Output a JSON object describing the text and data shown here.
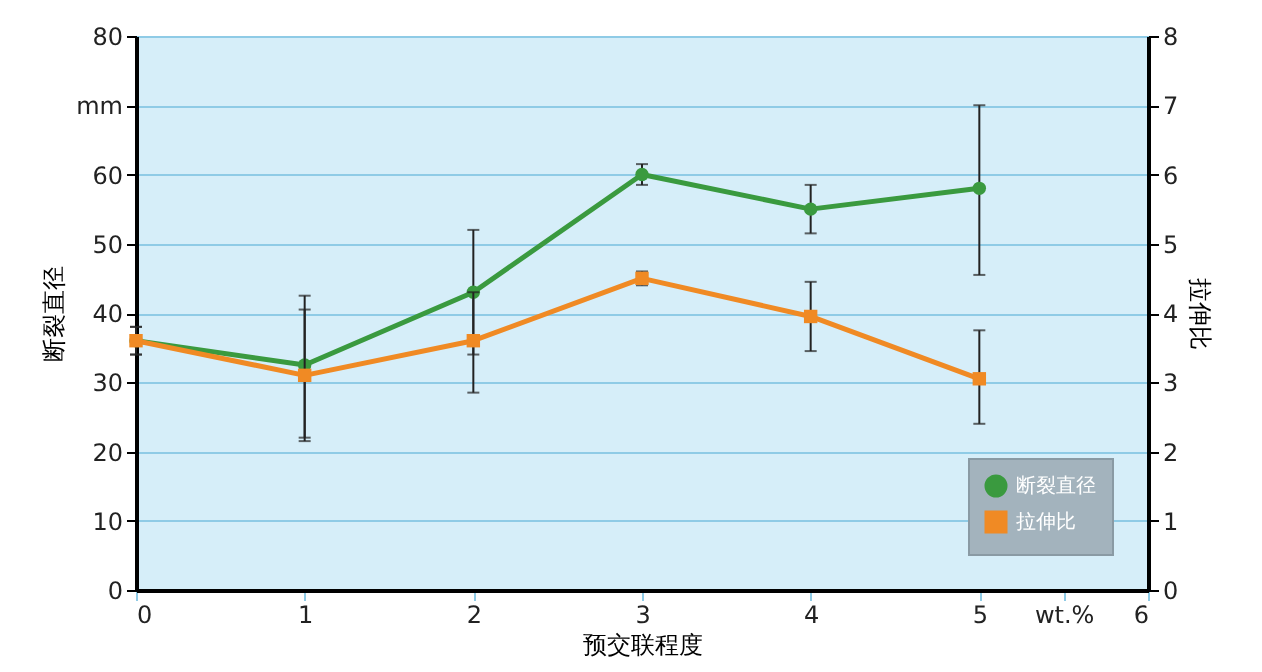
{
  "chart_data": {
    "type": "line",
    "xlabel": "预交联程度",
    "ylabel": "断裂直径",
    "y2label": "拉伸比",
    "x": [
      0,
      1,
      2,
      3,
      4,
      5
    ],
    "series": [
      {
        "name": "断裂直径",
        "color": "#3a9a3f",
        "marker": "circle",
        "values": [
          36,
          32.5,
          43,
          60,
          55,
          58
        ],
        "errors": [
          [
            34,
            38
          ],
          [
            22,
            42.5
          ],
          [
            34,
            52
          ],
          [
            58.5,
            61.5
          ],
          [
            51.5,
            58.5
          ],
          [
            45.5,
            70
          ]
        ]
      },
      {
        "name": "拉伸比",
        "color": "#f08a24",
        "marker": "square",
        "axis": "y2",
        "values": [
          3.6,
          3.1,
          3.6,
          4.5,
          3.95,
          3.05
        ],
        "errors": [
          [
            3.4,
            3.8
          ],
          [
            2.15,
            4.05
          ],
          [
            2.85,
            4.3
          ],
          [
            4.4,
            4.6
          ],
          [
            3.45,
            4.45
          ],
          [
            2.4,
            3.75
          ]
        ]
      }
    ],
    "xlim": [
      0,
      6
    ],
    "xticks": [
      0,
      1,
      2,
      3,
      4,
      5,
      {
        "value": 5.5,
        "label": "wt.%"
      },
      6
    ],
    "ylim": [
      0,
      80
    ],
    "yticks": [
      0,
      10,
      20,
      30,
      40,
      50,
      60,
      {
        "value": 70,
        "label": "mm"
      },
      80
    ],
    "y2lim": [
      0,
      8
    ],
    "y2ticks": [
      0,
      1,
      2,
      3,
      4,
      5,
      6,
      7,
      8
    ],
    "grid": "y",
    "legend": "bottom right",
    "line_style": "solid"
  }
}
